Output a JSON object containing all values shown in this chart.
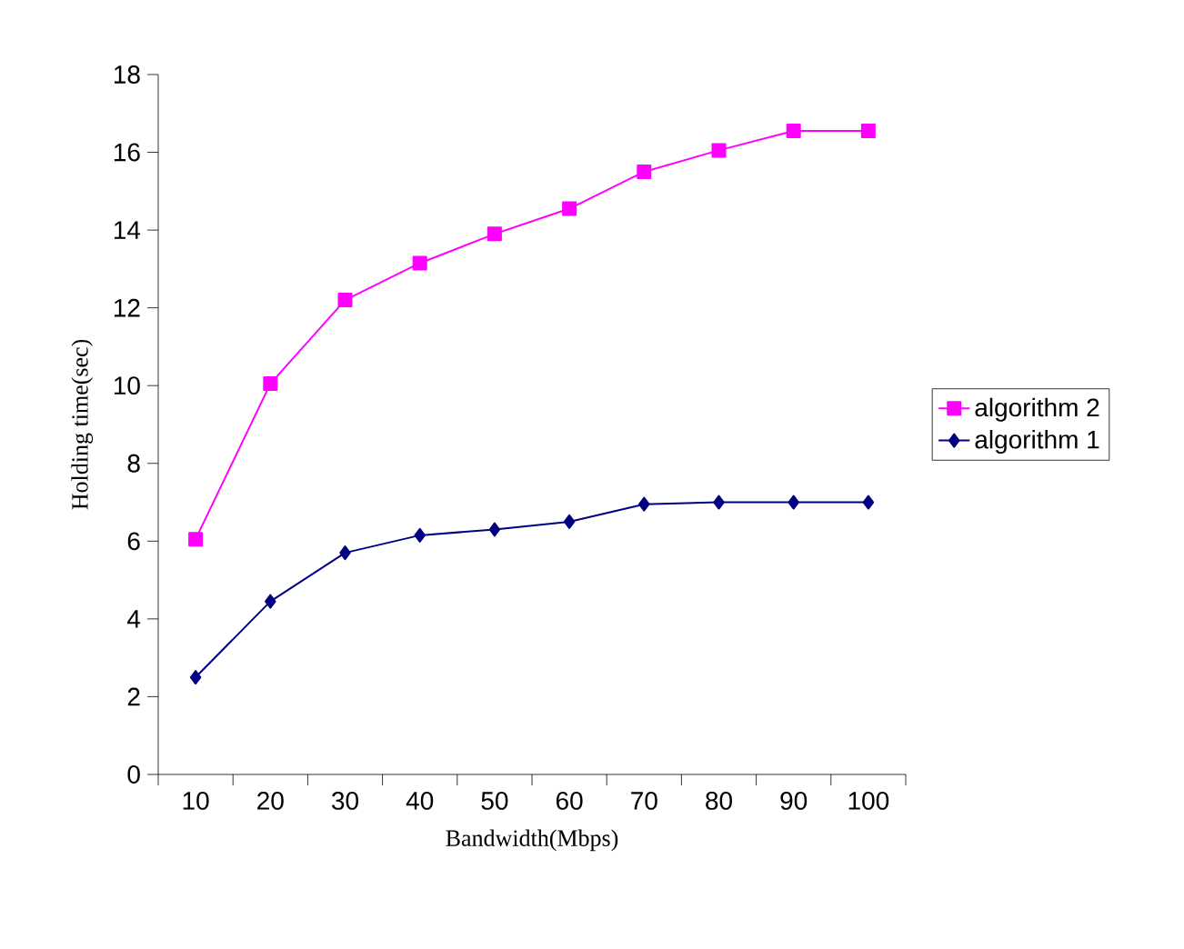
{
  "chart_data": {
    "type": "line",
    "xlabel": "Bandwidth(Mbps)",
    "ylabel": "Holding time(sec)",
    "categories": [
      "10",
      "20",
      "30",
      "40",
      "50",
      "60",
      "70",
      "80",
      "90",
      "100"
    ],
    "series": [
      {
        "name": "algorithm 2",
        "color": "#ff00ff",
        "marker": "square",
        "values": [
          6.05,
          10.05,
          12.2,
          13.15,
          13.9,
          14.55,
          15.5,
          16.05,
          16.55,
          16.55
        ]
      },
      {
        "name": "algorithm 1",
        "color": "#000080",
        "marker": "diamond",
        "values": [
          2.5,
          4.45,
          5.7,
          6.15,
          6.3,
          6.5,
          6.95,
          7.0,
          7.0,
          7.0
        ]
      }
    ],
    "ylim": [
      0,
      18
    ],
    "yticks": [
      0,
      2,
      4,
      6,
      8,
      10,
      12,
      14,
      16,
      18
    ],
    "grid": false,
    "legend": "right",
    "line_style": "solid"
  }
}
